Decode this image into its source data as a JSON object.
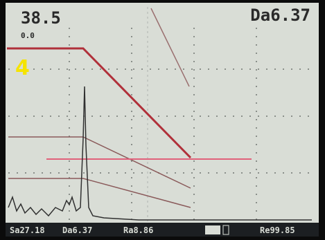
{
  "header": {
    "gain": "38.5",
    "depth": "Da6.37",
    "offset": "0.0"
  },
  "overlay": {
    "label": "4"
  },
  "status_bar": {
    "items": [
      "Sa27.18",
      "Da6.37",
      "Ra8.86",
      "Re99.85"
    ]
  }
}
